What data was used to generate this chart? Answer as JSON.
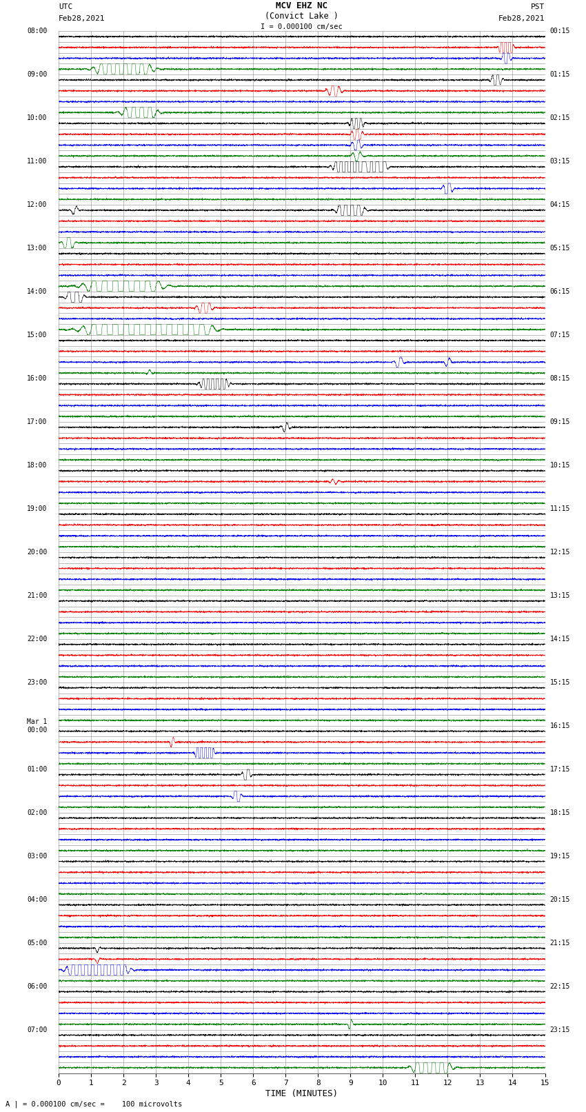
{
  "title_line1": "MCV EHZ NC",
  "title_line2": "(Convict Lake )",
  "scale_label": "I = 0.000100 cm/sec",
  "utc_label_line1": "UTC",
  "utc_label_line2": "Feb28,2021",
  "pst_label_line1": "PST",
  "pst_label_line2": "Feb28,2021",
  "bottom_label": "A | = 0.000100 cm/sec =    100 microvolts",
  "xlabel": "TIME (MINUTES)",
  "bg_color": "#ffffff",
  "grid_color": "#888888",
  "trace_colors": [
    "black",
    "red",
    "blue",
    "green"
  ],
  "left_times": [
    "08:00",
    "",
    "",
    "",
    "09:00",
    "",
    "",
    "",
    "10:00",
    "",
    "",
    "",
    "11:00",
    "",
    "",
    "",
    "12:00",
    "",
    "",
    "",
    "13:00",
    "",
    "",
    "",
    "14:00",
    "",
    "",
    "",
    "15:00",
    "",
    "",
    "",
    "16:00",
    "",
    "",
    "",
    "17:00",
    "",
    "",
    "",
    "18:00",
    "",
    "",
    "",
    "19:00",
    "",
    "",
    "",
    "20:00",
    "",
    "",
    "",
    "21:00",
    "",
    "",
    "",
    "22:00",
    "",
    "",
    "",
    "23:00",
    "",
    "",
    "",
    "Mar 1\n00:00",
    "",
    "",
    "",
    "01:00",
    "",
    "",
    "",
    "02:00",
    "",
    "",
    "",
    "03:00",
    "",
    "",
    "",
    "04:00",
    "",
    "",
    "",
    "05:00",
    "",
    "",
    "",
    "06:00",
    "",
    "",
    "",
    "07:00",
    "",
    "",
    ""
  ],
  "right_times": [
    "00:15",
    "",
    "",
    "",
    "01:15",
    "",
    "",
    "",
    "02:15",
    "",
    "",
    "",
    "03:15",
    "",
    "",
    "",
    "04:15",
    "",
    "",
    "",
    "05:15",
    "",
    "",
    "",
    "06:15",
    "",
    "",
    "",
    "07:15",
    "",
    "",
    "",
    "08:15",
    "",
    "",
    "",
    "09:15",
    "",
    "",
    "",
    "10:15",
    "",
    "",
    "",
    "11:15",
    "",
    "",
    "",
    "12:15",
    "",
    "",
    "",
    "13:15",
    "",
    "",
    "",
    "14:15",
    "",
    "",
    "",
    "15:15",
    "",
    "",
    "",
    "16:15",
    "",
    "",
    "",
    "17:15",
    "",
    "",
    "",
    "18:15",
    "",
    "",
    "",
    "19:15",
    "",
    "",
    "",
    "20:15",
    "",
    "",
    "",
    "21:15",
    "",
    "",
    "",
    "22:15",
    "",
    "",
    "",
    "23:15",
    "",
    "",
    ""
  ],
  "n_rows": 96,
  "x_max": 15,
  "noise_seed": 42
}
